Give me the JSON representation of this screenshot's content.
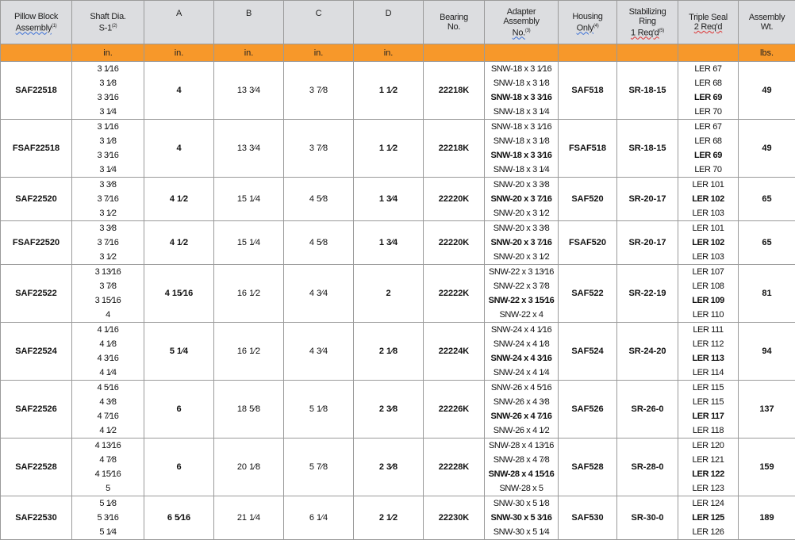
{
  "headers": [
    {
      "lines": [
        "Pillow Block",
        "Assembly"
      ],
      "sup": "(1)",
      "squiggle": "blue"
    },
    {
      "lines": [
        "Shaft Dia.",
        "S-1"
      ],
      "sup": "(2)"
    },
    {
      "lines": [
        "A"
      ]
    },
    {
      "lines": [
        "B"
      ]
    },
    {
      "lines": [
        "C"
      ]
    },
    {
      "lines": [
        "D"
      ]
    },
    {
      "lines": [
        "Bearing",
        "No."
      ]
    },
    {
      "lines": [
        "Adapter",
        "Assembly",
        "No."
      ],
      "sup": "(3)",
      "squiggle": "blue"
    },
    {
      "lines": [
        "Housing",
        "Only"
      ],
      "sup": "(4)",
      "squiggle": "blue"
    },
    {
      "lines": [
        "Stabilizing",
        "Ring",
        "1 Req'd"
      ],
      "sup": "(5)",
      "squiggle": "red"
    },
    {
      "lines": [
        "Triple Seal",
        "2 Req'd"
      ],
      "squiggle": "red"
    },
    {
      "lines": [
        "Assembly",
        "Wt."
      ]
    }
  ],
  "units": [
    "",
    "in.",
    "in.",
    "in.",
    "in.",
    "in.",
    "",
    "",
    "",
    "",
    "",
    "lbs."
  ],
  "colors": {
    "header_bg": "#dcdde0",
    "units_bg": "#f7982a",
    "border": "#9a9a9a"
  },
  "rows": [
    {
      "assembly": "SAF22518",
      "shaft": [
        "3 1⁄16",
        "3 1⁄8",
        "3 3⁄16",
        "3 1⁄4"
      ],
      "A": "4",
      "B": "13 3⁄4",
      "C": "3 7⁄8",
      "D": "1 1⁄2",
      "bearing": "22218K",
      "adapter": [
        "SNW-18 x 3 1⁄16",
        "SNW-18 x 3 1⁄8",
        "SNW-18 x 3 3⁄16",
        "SNW-18 x 3 1⁄4"
      ],
      "housing": "SAF518",
      "ring": "SR-18-15",
      "seal": [
        "LER 67",
        "LER 68",
        "LER 69",
        "LER 70"
      ],
      "wt": "49",
      "bold": 2
    },
    {
      "assembly": "FSAF22518",
      "shaft": [
        "3 1⁄16",
        "3 1⁄8",
        "3 3⁄16",
        "3 1⁄4"
      ],
      "A": "4",
      "B": "13 3⁄4",
      "C": "3 7⁄8",
      "D": "1 1⁄2",
      "bearing": "22218K",
      "adapter": [
        "SNW-18 x 3 1⁄16",
        "SNW-18 x 3 1⁄8",
        "SNW-18 x 3 3⁄16",
        "SNW-18 x 3 1⁄4"
      ],
      "housing": "FSAF518",
      "ring": "SR-18-15",
      "seal": [
        "LER 67",
        "LER 68",
        "LER 69",
        "LER 70"
      ],
      "wt": "49",
      "bold": 2
    },
    {
      "assembly": "SAF22520",
      "shaft": [
        "3 3⁄8",
        "3 7⁄16",
        "3 1⁄2"
      ],
      "A": "4 1⁄2",
      "B": "15 1⁄4",
      "C": "4 5⁄8",
      "D": "1 3⁄4",
      "bearing": "22220K",
      "adapter": [
        "SNW-20 x 3 3⁄8",
        "SNW-20 x 3 7⁄16",
        "SNW-20 x 3 1⁄2"
      ],
      "housing": "SAF520",
      "ring": "SR-20-17",
      "seal": [
        "LER 101",
        "LER 102",
        "LER 103"
      ],
      "wt": "65",
      "bold": 1
    },
    {
      "assembly": "FSAF22520",
      "shaft": [
        "3 3⁄8",
        "3 7⁄16",
        "3 1⁄2"
      ],
      "A": "4 1⁄2",
      "B": "15 1⁄4",
      "C": "4 5⁄8",
      "D": "1 3⁄4",
      "bearing": "22220K",
      "adapter": [
        "SNW-20 x 3 3⁄8",
        "SNW-20 x 3 7⁄16",
        "SNW-20 x 3 1⁄2"
      ],
      "housing": "FSAF520",
      "ring": "SR-20-17",
      "seal": [
        "LER 101",
        "LER 102",
        "LER 103"
      ],
      "wt": "65",
      "bold": 1
    },
    {
      "assembly": "SAF22522",
      "shaft": [
        "3 13⁄16",
        "3 7⁄8",
        "3 15⁄16",
        "4"
      ],
      "A": "4 15⁄16",
      "B": "16 1⁄2",
      "C": "4 3⁄4",
      "D": "2",
      "bearing": "22222K",
      "adapter": [
        "SNW-22 x 3 13⁄16",
        "SNW-22 x 3 7⁄8",
        "SNW-22 x 3 15⁄16",
        "SNW-22 x 4"
      ],
      "housing": "SAF522",
      "ring": "SR-22-19",
      "seal": [
        "LER 107",
        "LER 108",
        "LER 109",
        "LER 110"
      ],
      "wt": "81",
      "bold": 2
    },
    {
      "assembly": "SAF22524",
      "shaft": [
        "4 1⁄16",
        "4 1⁄8",
        "4 3⁄16",
        "4 1⁄4"
      ],
      "A": "5 1⁄4",
      "B": "16 1⁄2",
      "C": "4 3⁄4",
      "D": "2 1⁄8",
      "bearing": "22224K",
      "adapter": [
        "SNW-24 x 4 1⁄16",
        "SNW-24 x 4 1⁄8",
        "SNW-24 x 4 3⁄16",
        "SNW-24 x 4 1⁄4"
      ],
      "housing": "SAF524",
      "ring": "SR-24-20",
      "seal": [
        "LER 111",
        "LER 112",
        "LER 113",
        "LER 114"
      ],
      "wt": "94",
      "bold": 2
    },
    {
      "assembly": "SAF22526",
      "shaft": [
        "4 5⁄16",
        "4 3⁄8",
        "4 7⁄16",
        "4 1⁄2"
      ],
      "A": "6",
      "B": "18 5⁄8",
      "C": "5 1⁄8",
      "D": "2 3⁄8",
      "bearing": "22226K",
      "adapter": [
        "SNW-26 x 4 5⁄16",
        "SNW-26 x 4 3⁄8",
        "SNW-26 x 4 7⁄16",
        "SNW-26 x 4 1⁄2"
      ],
      "housing": "SAF526",
      "ring": "SR-26-0",
      "seal": [
        "LER 115",
        "LER 115",
        "LER 117",
        "LER 118"
      ],
      "wt": "137",
      "bold": 2
    },
    {
      "assembly": "SAF22528",
      "shaft": [
        "4 13⁄16",
        "4 7⁄8",
        "4 15⁄16",
        "5"
      ],
      "A": "6",
      "B": "20 1⁄8",
      "C": "5 7⁄8",
      "D": "2 3⁄8",
      "bearing": "22228K",
      "adapter": [
        "SNW-28 x 4 13⁄16",
        "SNW-28 x 4 7⁄8",
        "SNW-28 x 4 15⁄16",
        "SNW-28 x 5"
      ],
      "housing": "SAF528",
      "ring": "SR-28-0",
      "seal": [
        "LER 120",
        "LER 121",
        "LER 122",
        "LER 123"
      ],
      "wt": "159",
      "bold": 2
    },
    {
      "assembly": "SAF22530",
      "shaft": [
        "5 1⁄8",
        "5 3⁄16",
        "5 1⁄4"
      ],
      "A": "6 5⁄16",
      "B": "21 1⁄4",
      "C": "6 1⁄4",
      "D": "2 1⁄2",
      "bearing": "22230K",
      "adapter": [
        "SNW-30 x 5 1⁄8",
        "SNW-30 x 5 3⁄16",
        "SNW-30 x 5 1⁄4"
      ],
      "housing": "SAF530",
      "ring": "SR-30-0",
      "seal": [
        "LER 124",
        "LER 125",
        "LER 126"
      ],
      "wt": "189",
      "bold": 1
    }
  ]
}
